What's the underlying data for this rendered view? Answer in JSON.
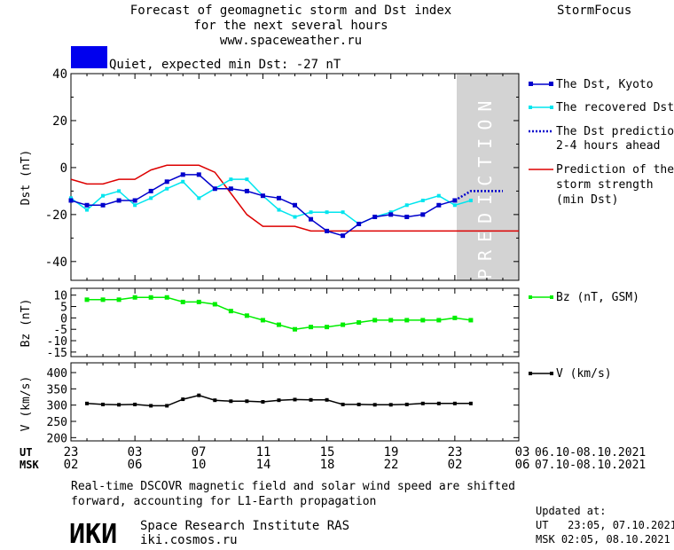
{
  "header": {
    "title_lines": [
      "Forecast of geomagnetic storm and Dst index",
      "for the next several hours",
      "www.spaceweather.ru"
    ],
    "brand": "StormFocus",
    "status_text": "Quiet, expected min Dst: -27 nT",
    "status_color": "#0000ee"
  },
  "prediction_label": "PREDICTION",
  "legend": {
    "dst_kyoto": "The Dst, Kyoto",
    "dst_recovered": "The recovered Dst",
    "dst_prediction_lines": [
      "The Dst prediction",
      "2-4 hours ahead"
    ],
    "storm_strength_lines": [
      "Prediction of the",
      "storm strength",
      "(min Dst)"
    ],
    "bz": "Bz (nT, GSM)",
    "v": "V (km/s)"
  },
  "time_axis": {
    "ut_label": "UT",
    "msk_label": "MSK",
    "ut_ticks": [
      "23",
      "03",
      "07",
      "11",
      "15",
      "19",
      "23",
      "03"
    ],
    "msk_ticks": [
      "02",
      "06",
      "10",
      "14",
      "18",
      "22",
      "02",
      "06"
    ],
    "ut_range": "06.10-08.10.2021",
    "msk_range": "07.10-08.10.2021"
  },
  "footer": {
    "note_lines": [
      "Real-time DSCOVR magnetic field and solar wind speed are shifted",
      "forward, accounting for L1-Earth propagation"
    ],
    "logo_text": "ИКИ",
    "institute": "Space Research Institute RAS",
    "site": "iki.cosmos.ru",
    "updated_label": "Updated at:",
    "updated_ut": "UT   23:05, 07.10.2021",
    "updated_msk": "MSK 02:05, 08.10.2021"
  },
  "colors": {
    "dst_kyoto": "#0000cc",
    "dst_recovered": "#00e5ee",
    "storm_strength": "#dd0000",
    "bz": "#00ee00",
    "v": "#000000",
    "prediction_band": "#d3d3d3"
  },
  "chart_data": [
    {
      "type": "line",
      "ylabel": "Dst (nT)",
      "ylim": [
        -48,
        40
      ],
      "yticks": [
        40,
        20,
        0,
        -20,
        -40
      ],
      "x_hours_range": [
        0,
        28
      ],
      "prediction_band_hours": [
        24.5,
        28
      ],
      "series": [
        {
          "name": "The Dst, Kyoto",
          "x": [
            0,
            1,
            2,
            3,
            4,
            5,
            6,
            7,
            8,
            9,
            10,
            11,
            12,
            13,
            14,
            15,
            16,
            17,
            18,
            19,
            20,
            21,
            22,
            23,
            24
          ],
          "y": [
            -14,
            -16,
            -16,
            -14,
            -14,
            -10,
            -6,
            -3,
            -3,
            -9,
            -9,
            -10,
            -12,
            -13,
            -16,
            -22,
            -27,
            -29,
            -24,
            -21,
            -20,
            -21,
            -20,
            -16,
            -14
          ]
        },
        {
          "name": "The recovered Dst",
          "x": [
            0,
            1,
            2,
            3,
            4,
            5,
            6,
            7,
            8,
            9,
            10,
            11,
            12,
            13,
            14,
            15,
            16,
            17,
            18,
            19,
            20,
            21,
            22,
            23,
            24,
            25
          ],
          "y": [
            -13,
            -18,
            -12,
            -10,
            -16,
            -13,
            -9,
            -6,
            -13,
            -9,
            -5,
            -5,
            -12,
            -18,
            -21,
            -19,
            -19,
            -19,
            -24,
            -21,
            -19,
            -16,
            -14,
            -12,
            -16,
            -14
          ]
        },
        {
          "name": "The Dst prediction 2-4 hours ahead",
          "x": [
            24,
            25,
            26,
            27
          ],
          "y": [
            -14,
            -10,
            -10,
            -10
          ]
        },
        {
          "name": "Prediction of the storm strength (min Dst)",
          "x": [
            0,
            1,
            2,
            3,
            4,
            5,
            6,
            7,
            8,
            9,
            10,
            11,
            12,
            13,
            14,
            15,
            16,
            17,
            18,
            19,
            20,
            21,
            22,
            23,
            24,
            25,
            26,
            27,
            28
          ],
          "y": [
            -5,
            -7,
            -7,
            -5,
            -5,
            -1,
            1,
            1,
            1,
            -2,
            -11,
            -20,
            -25,
            -25,
            -25,
            -27,
            -27,
            -27,
            -27,
            -27,
            -27,
            -27,
            -27,
            -27,
            -27,
            -27,
            -27,
            -27,
            -27
          ]
        }
      ]
    },
    {
      "type": "line",
      "ylabel": "Bz (nT)",
      "ylim": [
        -17,
        13
      ],
      "yticks": [
        10,
        5,
        0,
        -5,
        -10,
        -15
      ],
      "series": [
        {
          "name": "Bz (nT, GSM)",
          "x": [
            1,
            2,
            3,
            4,
            5,
            6,
            7,
            8,
            9,
            10,
            11,
            12,
            13,
            14,
            15,
            16,
            17,
            18,
            19,
            20,
            21,
            22,
            23,
            24,
            25
          ],
          "y": [
            8,
            8,
            8,
            9,
            9,
            9,
            7,
            7,
            6,
            3,
            1,
            -1,
            -3,
            -5,
            -4,
            -4,
            -3,
            -2,
            -1,
            -1,
            -1,
            -1,
            -1,
            0,
            -1
          ]
        }
      ]
    },
    {
      "type": "line",
      "ylabel": "V (km/s)",
      "ylim": [
        190,
        430
      ],
      "yticks": [
        400,
        350,
        300,
        250,
        200
      ],
      "series": [
        {
          "name": "V (km/s)",
          "x": [
            1,
            2,
            3,
            4,
            5,
            6,
            7,
            8,
            9,
            10,
            11,
            12,
            13,
            14,
            15,
            16,
            17,
            18,
            19,
            20,
            21,
            22,
            23,
            24,
            25
          ],
          "y": [
            305,
            302,
            301,
            302,
            298,
            298,
            318,
            330,
            315,
            312,
            312,
            310,
            315,
            317,
            316,
            316,
            302,
            302,
            301,
            301,
            302,
            305,
            305,
            305,
            305
          ]
        }
      ]
    }
  ]
}
